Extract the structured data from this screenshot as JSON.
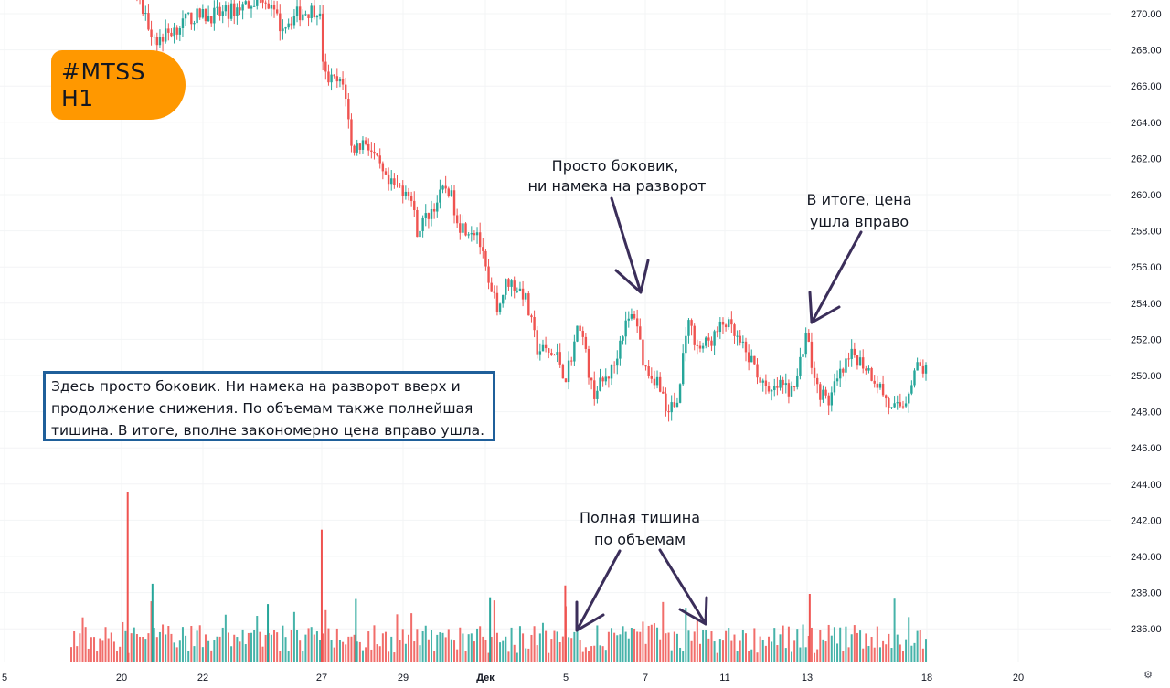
{
  "ticker_badge": "#MTSS H1",
  "note_lines": [
    "Здесь просто боковик. Ни намека на разворот вверх и",
    "продолжение снижения. По объемам также полнейшая",
    "тишина. В итоге, вполне закономерно цена вправо ушла."
  ],
  "annotations": {
    "sideways_line1": "Просто боковик,",
    "sideways_line2": "ни намека на разворот",
    "result_line1": "В итоге, цена",
    "result_line2": "ушла вправо",
    "volume_line1": "Полная тишина",
    "volume_line2": "по объемам"
  },
  "settings_icon": "gear-icon",
  "colors": {
    "up": "#26a69a",
    "down": "#ef5350",
    "arrow": "#3b2e5a",
    "badge": "#ff9800",
    "note_border": "#1f5f9a"
  },
  "chart_data": {
    "type": "candlestick",
    "symbol": "MTSS",
    "timeframe": "H1",
    "y_axis": {
      "ticks": [
        "270.00",
        "268.00",
        "266.00",
        "264.00",
        "262.00",
        "260.00",
        "258.00",
        "256.00",
        "254.00",
        "252.00",
        "250.00",
        "248.00",
        "246.00",
        "244.00",
        "242.00",
        "240.00",
        "238.00",
        "236.00"
      ],
      "range": [
        234.5,
        270.8
      ]
    },
    "x_axis": {
      "ticks": [
        "5",
        "20",
        "22",
        "27",
        "29",
        "Дек",
        "5",
        "7",
        "11",
        "13",
        "18",
        "20"
      ]
    },
    "price_path": [
      {
        "x": 0.075,
        "close": 271.5
      },
      {
        "x": 0.085,
        "close": 270.0
      },
      {
        "x": 0.1,
        "close": 268.5
      },
      {
        "x": 0.14,
        "close": 269.8
      },
      {
        "x": 0.18,
        "close": 270.0
      },
      {
        "x": 0.225,
        "close": 271.0
      },
      {
        "x": 0.245,
        "close": 269.3
      },
      {
        "x": 0.265,
        "close": 270.0
      },
      {
        "x": 0.29,
        "close": 270.3
      },
      {
        "x": 0.296,
        "close": 266.5
      },
      {
        "x": 0.32,
        "close": 266.0
      },
      {
        "x": 0.328,
        "close": 262.5
      },
      {
        "x": 0.345,
        "close": 263.0
      },
      {
        "x": 0.37,
        "close": 260.5
      },
      {
        "x": 0.395,
        "close": 260.3
      },
      {
        "x": 0.405,
        "close": 258.0
      },
      {
        "x": 0.44,
        "close": 260.5
      },
      {
        "x": 0.455,
        "close": 258.3
      },
      {
        "x": 0.475,
        "close": 258.0
      },
      {
        "x": 0.49,
        "close": 254.5
      },
      {
        "x": 0.5,
        "close": 253.8
      },
      {
        "x": 0.51,
        "close": 255.3
      },
      {
        "x": 0.53,
        "close": 254.5
      },
      {
        "x": 0.545,
        "close": 251.5
      },
      {
        "x": 0.57,
        "close": 251.0
      },
      {
        "x": 0.578,
        "close": 249.8
      },
      {
        "x": 0.595,
        "close": 253.0
      },
      {
        "x": 0.61,
        "close": 249.0
      },
      {
        "x": 0.625,
        "close": 249.8
      },
      {
        "x": 0.635,
        "close": 250.5
      },
      {
        "x": 0.645,
        "close": 252.5
      },
      {
        "x": 0.66,
        "close": 253.5
      },
      {
        "x": 0.67,
        "close": 250.5
      },
      {
        "x": 0.69,
        "close": 249.5
      },
      {
        "x": 0.695,
        "close": 248.0
      },
      {
        "x": 0.71,
        "close": 248.5
      },
      {
        "x": 0.72,
        "close": 253.0
      },
      {
        "x": 0.735,
        "close": 251.5
      },
      {
        "x": 0.75,
        "close": 252.0
      },
      {
        "x": 0.765,
        "close": 253.0
      },
      {
        "x": 0.785,
        "close": 251.5
      },
      {
        "x": 0.8,
        "close": 250.5
      },
      {
        "x": 0.815,
        "close": 248.8
      },
      {
        "x": 0.83,
        "close": 249.5
      },
      {
        "x": 0.845,
        "close": 249.0
      },
      {
        "x": 0.86,
        "close": 252.5
      },
      {
        "x": 0.87,
        "close": 249.5
      },
      {
        "x": 0.885,
        "close": 248.5
      },
      {
        "x": 0.9,
        "close": 250.0
      },
      {
        "x": 0.915,
        "close": 251.2
      },
      {
        "x": 0.93,
        "close": 250.5
      },
      {
        "x": 0.945,
        "close": 249.5
      },
      {
        "x": 0.96,
        "close": 248.0
      },
      {
        "x": 0.975,
        "close": 248.5
      },
      {
        "x": 0.988,
        "close": 250.5
      },
      {
        "x": 1.0,
        "close": 250.3
      }
    ],
    "volume_spikes": [
      {
        "x": 0.066,
        "v": 1.0
      },
      {
        "x": 0.095,
        "v": 0.46
      },
      {
        "x": 0.293,
        "v": 0.78
      },
      {
        "x": 0.578,
        "v": 0.45
      },
      {
        "x": 0.864,
        "v": 0.4
      },
      {
        "x": 0.49,
        "v": 0.38
      },
      {
        "x": 0.23,
        "v": 0.34
      },
      {
        "x": 0.333,
        "v": 0.37
      }
    ]
  }
}
